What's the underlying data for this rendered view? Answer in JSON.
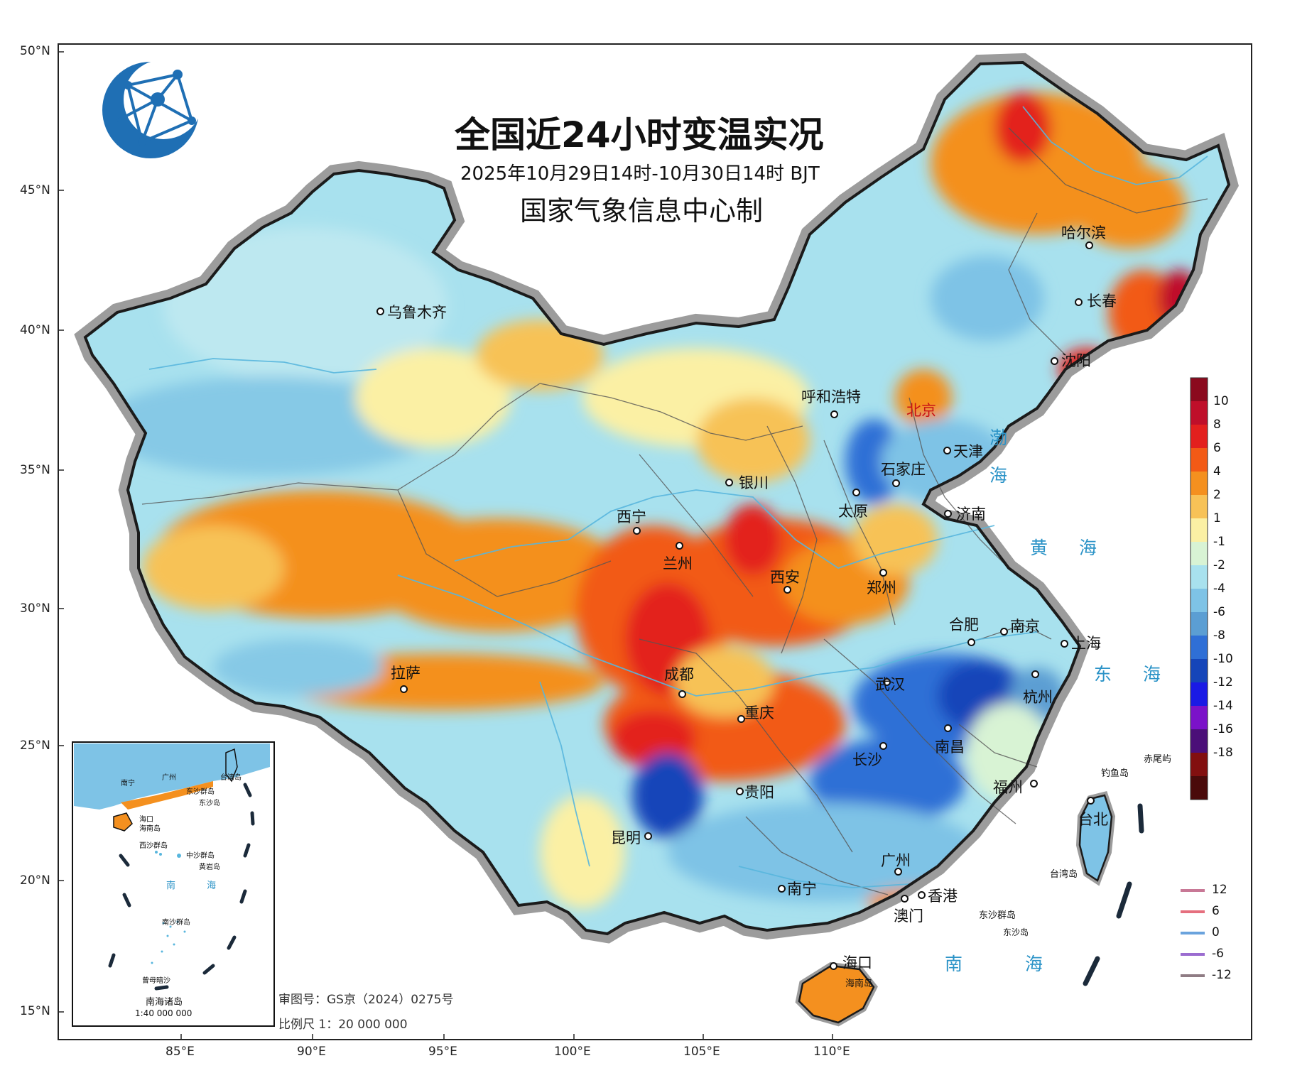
{
  "header": {
    "title": "全国近24小时变温实况",
    "subtitle": "2025年10月29日14时-10月30日14时 BJT",
    "publisher": "国家气象信息中心制"
  },
  "axes": {
    "lat_labels": [
      "50°N",
      "45°N",
      "40°N",
      "35°N",
      "30°N",
      "25°N",
      "20°N",
      "15°N"
    ],
    "lon_labels": [
      "85°E",
      "90°E",
      "95°E",
      "100°E",
      "105°E",
      "110°E"
    ]
  },
  "cities": [
    {
      "id": "wulumuqi",
      "name": "乌鲁木齐"
    },
    {
      "id": "haerbin",
      "name": "哈尔滨"
    },
    {
      "id": "changchun",
      "name": "长春"
    },
    {
      "id": "shenyang",
      "name": "沈阳"
    },
    {
      "id": "huhehaote",
      "name": "呼和浩特"
    },
    {
      "id": "beijing",
      "name": "北京"
    },
    {
      "id": "tianjin",
      "name": "天津"
    },
    {
      "id": "shijiazhuang",
      "name": "石家庄"
    },
    {
      "id": "yinchuan",
      "name": "银川"
    },
    {
      "id": "taiyuan",
      "name": "太原"
    },
    {
      "id": "jinan",
      "name": "济南"
    },
    {
      "id": "xining",
      "name": "西宁"
    },
    {
      "id": "lanzhou",
      "name": "兰州"
    },
    {
      "id": "xian",
      "name": "西安"
    },
    {
      "id": "zhengzhou",
      "name": "郑州"
    },
    {
      "id": "hefei",
      "name": "合肥"
    },
    {
      "id": "nanjing",
      "name": "南京"
    },
    {
      "id": "shanghai",
      "name": "上海"
    },
    {
      "id": "lasa",
      "name": "拉萨"
    },
    {
      "id": "chengdu",
      "name": "成都"
    },
    {
      "id": "wuhan",
      "name": "武汉"
    },
    {
      "id": "hangzhou",
      "name": "杭州"
    },
    {
      "id": "chongqing",
      "name": "重庆"
    },
    {
      "id": "nanchang",
      "name": "南昌"
    },
    {
      "id": "changsha",
      "name": "长沙"
    },
    {
      "id": "guiyang",
      "name": "贵阳"
    },
    {
      "id": "fuzhou",
      "name": "福州"
    },
    {
      "id": "taibei",
      "name": "台北"
    },
    {
      "id": "kunming",
      "name": "昆明"
    },
    {
      "id": "guangzhou",
      "name": "广州"
    },
    {
      "id": "nanning",
      "name": "南宁"
    },
    {
      "id": "xianggang",
      "name": "香港"
    },
    {
      "id": "aomen",
      "name": "澳门"
    },
    {
      "id": "haikou",
      "name": "海口"
    }
  ],
  "seas": {
    "bohai": [
      "渤",
      "海"
    ],
    "huanghai": "黄 海",
    "donghai": "东 海",
    "nanhai": "南 海"
  },
  "islands": {
    "chiweiyu": "赤尾屿",
    "diaoyudao": "钓鱼岛",
    "taiwandao": "台湾岛",
    "dongsha": "东沙群岛",
    "dongshadao": "东沙岛",
    "hainandao": "海南岛"
  },
  "inset": {
    "title": "南海诸岛",
    "scale": "1:40 000 000",
    "labels": [
      "台北",
      "南宁",
      "广州",
      "东沙群岛",
      "东沙岛",
      "海口",
      "海南岛",
      "西沙群岛",
      "中沙群岛",
      "黄岩岛",
      "南 海",
      "南沙群岛",
      "曾母暗沙",
      "台湾岛"
    ]
  },
  "footer": {
    "review_no": "审图号：GS京（2024）0275号",
    "scale": "比例尺 1：20 000 000"
  },
  "legend": {
    "levels": [
      "10",
      "8",
      "6",
      "4",
      "2",
      "1",
      "-1",
      "-2",
      "-4",
      "-6",
      "-8",
      "-10",
      "-12",
      "-14",
      "-16",
      "-18"
    ],
    "colors": [
      "#8b0a1e",
      "#bf0f2a",
      "#e3201e",
      "#f25a16",
      "#f4901f",
      "#f7c257",
      "#fbf0a4",
      "#d8f3d4",
      "#a8e1ee",
      "#7ec3e6",
      "#5b9ed3",
      "#2f6fd6",
      "#1545b9",
      "#1a1ae5",
      "#7b12c9",
      "#4b0f78",
      "#820f0f",
      "#4a0a0a"
    ],
    "contours": [
      {
        "label": "12",
        "color": "#c87896"
      },
      {
        "label": "6",
        "color": "#e56f7e"
      },
      {
        "label": "0",
        "color": "#6aa3dd"
      },
      {
        "label": "-6",
        "color": "#9b6cd0"
      },
      {
        "label": "-12",
        "color": "#8f7c84"
      }
    ]
  }
}
